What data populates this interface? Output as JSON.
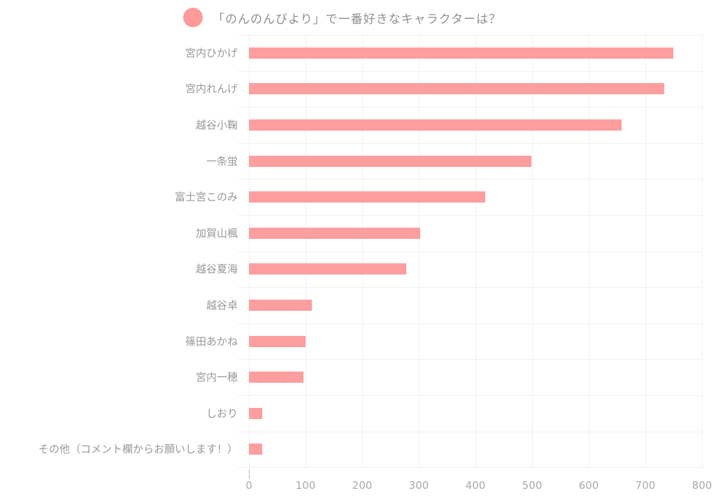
{
  "chart_data": {
    "type": "bar",
    "orientation": "horizontal",
    "title": "「のんのんびより」で一番好きなキャラクターは？",
    "legend": {
      "label": "「のんのんびより」で一番好きなキャラクターは？",
      "color": "#ff9a9a",
      "position": "top"
    },
    "categories": [
      "宮内ひかげ",
      "宮内れんげ",
      "越谷小鞠",
      "一条蛍",
      "富士宮このみ",
      "加賀山楓",
      "越谷夏海",
      "越谷卓",
      "篠田あかね",
      "宮内一穂",
      "しおり",
      "その他（コメント欄からお願いします！）"
    ],
    "values": [
      749,
      733,
      658,
      499,
      417,
      302,
      278,
      111,
      100,
      96,
      23,
      23
    ],
    "xlabel": "",
    "ylabel": "",
    "xlim": [
      0,
      800
    ],
    "xticks": [
      "0",
      "100",
      "200",
      "300",
      "400",
      "500",
      "600",
      "700",
      "800"
    ],
    "grid": true,
    "bar_color": "#ff9e9e"
  },
  "legend": {
    "label": "「のんのんびより」で一番好きなキャラクターは？"
  },
  "rows": [
    {
      "label": "宮内ひかげ"
    },
    {
      "label": "宮内れんげ"
    },
    {
      "label": "越谷小鞠"
    },
    {
      "label": "一条蛍"
    },
    {
      "label": "富士宮このみ"
    },
    {
      "label": "加賀山楓"
    },
    {
      "label": "越谷夏海"
    },
    {
      "label": "越谷卓"
    },
    {
      "label": "篠田あかね"
    },
    {
      "label": "宮内一穂"
    },
    {
      "label": "しおり"
    },
    {
      "label": "その他（コメント欄からお願いします！）"
    }
  ],
  "ticks": [
    "0",
    "100",
    "200",
    "300",
    "400",
    "500",
    "600",
    "700",
    "800"
  ]
}
